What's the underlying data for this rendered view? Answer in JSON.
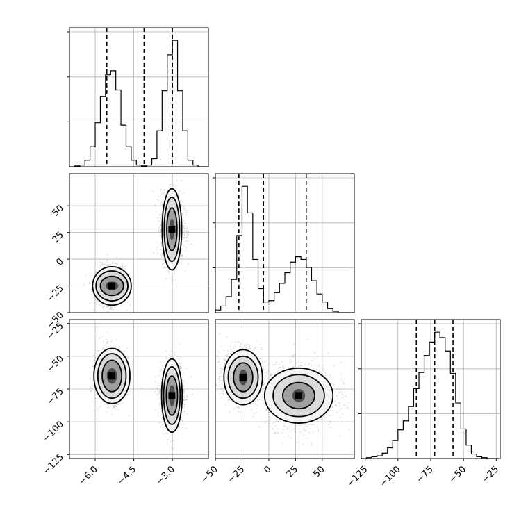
{
  "chart_data": {
    "type": "corner",
    "parameters": [
      "",
      "",
      ""
    ],
    "colors": {
      "line": "#000000",
      "grid": "#b0b0b0",
      "fill": "#000000",
      "scatter": "#000000",
      "background": "#ffffff"
    },
    "grid": true,
    "ranges": [
      [
        -7.0,
        -1.6
      ],
      [
        -50,
        80
      ],
      [
        -128,
        -22
      ]
    ],
    "ticks": {
      "p1": [
        {
          "v": -6.0,
          "label": "−6.0"
        },
        {
          "v": -4.5,
          "label": "−4.5"
        },
        {
          "v": -3.0,
          "label": "−3.0"
        }
      ],
      "p2": [
        {
          "v": -50,
          "label": "−50"
        },
        {
          "v": -25,
          "label": "−25"
        },
        {
          "v": 0,
          "label": "0"
        },
        {
          "v": 25,
          "label": "25"
        },
        {
          "v": 50,
          "label": "50"
        }
      ],
      "p3": [
        {
          "v": -125,
          "label": "−125"
        },
        {
          "v": -100,
          "label": "−100"
        },
        {
          "v": -75,
          "label": "−75"
        },
        {
          "v": -50,
          "label": "−50"
        },
        {
          "v": -25,
          "label": "−25"
        }
      ]
    },
    "quantile_lines": {
      "p1": [
        -5.55,
        -4.1,
        -3.0
      ],
      "p2": [
        -28,
        -5,
        35
      ],
      "p3": [
        -86,
        -72,
        -58
      ]
    },
    "histograms": {
      "p1": {
        "edges": [
          -7.0,
          -6.8,
          -6.6,
          -6.4,
          -6.2,
          -6.0,
          -5.8,
          -5.6,
          -5.4,
          -5.2,
          -5.0,
          -4.8,
          -4.6,
          -4.4,
          -4.2,
          -4.0,
          -3.8,
          -3.6,
          -3.4,
          -3.2,
          -3.0,
          -2.8,
          -2.6,
          -2.4,
          -2.2,
          -2.0,
          -1.8,
          -1.6
        ],
        "counts": [
          0,
          1,
          2,
          8,
          25,
          55,
          88,
          115,
          120,
          96,
          52,
          25,
          8,
          2,
          1,
          2,
          10,
          45,
          95,
          140,
          158,
          95,
          45,
          8,
          2,
          0,
          0
        ]
      },
      "p2": {
        "edges": [
          -50,
          -45,
          -40,
          -35,
          -30,
          -25,
          -20,
          -15,
          -10,
          -5,
          0,
          5,
          10,
          15,
          20,
          25,
          30,
          35,
          40,
          45,
          50,
          55,
          60,
          65,
          70,
          75,
          80
        ],
        "counts": [
          2,
          5,
          12,
          25,
          58,
          95,
          75,
          40,
          18,
          8,
          9,
          15,
          22,
          30,
          38,
          42,
          40,
          34,
          24,
          14,
          8,
          3,
          1,
          0,
          0,
          0
        ]
      },
      "p3": {
        "edges": [
          -128,
          -124,
          -120,
          -116,
          -112,
          -108,
          -104,
          -100,
          -96,
          -92,
          -88,
          -84,
          -80,
          -76,
          -72,
          -68,
          -64,
          -60,
          -56,
          -52,
          -48,
          -44,
          -40,
          -36,
          -32,
          -28,
          -24
        ],
        "counts": [
          0,
          1,
          2,
          3,
          6,
          12,
          20,
          32,
          42,
          58,
          78,
          96,
          115,
          130,
          141,
          135,
          120,
          95,
          62,
          33,
          15,
          5,
          2,
          1,
          0,
          0
        ]
      }
    },
    "clusters": [
      {
        "p1": -5.4,
        "p2": -25,
        "p3": -65,
        "sd": [
          0.28,
          9,
          10
        ],
        "w": 0.5
      },
      {
        "p1": -3.0,
        "p2": 30,
        "p3": -80,
        "sd": [
          0.22,
          16,
          12
        ],
        "w": 0.5
      }
    ],
    "contour_centers": {
      "p2_vs_p1": [
        {
          "x": -5.35,
          "y": -25,
          "rx": [
            0.25,
            0.45,
            0.62,
            0.75
          ],
          "ry": [
            4,
            9,
            14,
            18
          ]
        },
        {
          "x": -3.02,
          "y": 28,
          "rx": [
            0.1,
            0.2,
            0.3,
            0.38
          ],
          "ry": [
            10,
            20,
            30,
            38
          ]
        }
      ],
      "p3_vs_p1": [
        {
          "x": -5.35,
          "y": -65,
          "rx": [
            0.2,
            0.38,
            0.55,
            0.7
          ],
          "ry": [
            6,
            12,
            17,
            21
          ]
        },
        {
          "x": -3.02,
          "y": -80,
          "rx": [
            0.12,
            0.22,
            0.32,
            0.4
          ],
          "ry": [
            8,
            15,
            22,
            28
          ]
        }
      ],
      "p3_vs_p2": [
        {
          "x": -24,
          "y": -66,
          "rx": [
            4,
            9,
            14,
            18
          ],
          "ry": [
            6,
            11,
            16,
            21
          ]
        },
        {
          "x": 28,
          "y": -80,
          "rx": [
            6,
            15,
            24,
            32
          ],
          "ry": [
            5,
            10,
            16,
            21
          ]
        }
      ]
    }
  }
}
